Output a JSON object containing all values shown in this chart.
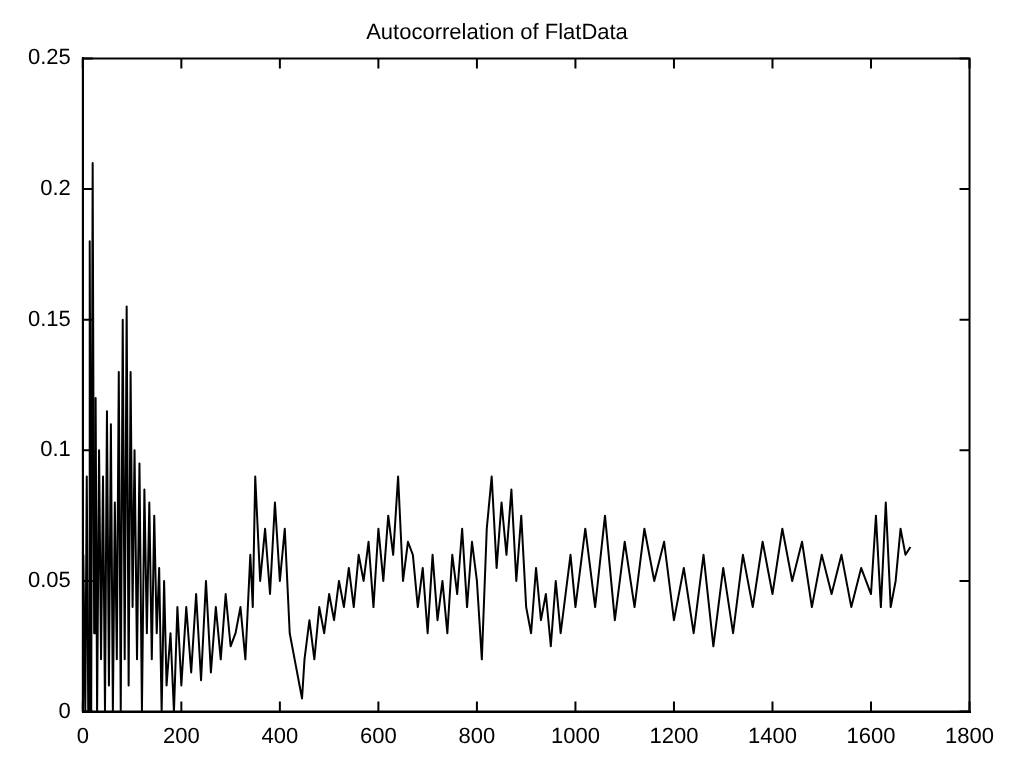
{
  "chart_data": {
    "type": "line",
    "title": "Autocorrelation of FlatData",
    "x": [
      1,
      5,
      8,
      11,
      14,
      17,
      20,
      23,
      26,
      29,
      33,
      37,
      41,
      45,
      49,
      53,
      57,
      61,
      65,
      69,
      73,
      77,
      81,
      85,
      89,
      93,
      97,
      101,
      105,
      110,
      115,
      120,
      125,
      130,
      135,
      140,
      145,
      150,
      155,
      160,
      165,
      170,
      178,
      185,
      192,
      200,
      210,
      220,
      230,
      240,
      250,
      260,
      270,
      280,
      290,
      300,
      310,
      320,
      330,
      340,
      345,
      350,
      360,
      370,
      380,
      390,
      400,
      410,
      420,
      430,
      440,
      445,
      450,
      460,
      470,
      480,
      490,
      500,
      510,
      520,
      530,
      540,
      550,
      560,
      570,
      580,
      590,
      600,
      610,
      620,
      630,
      640,
      650,
      660,
      670,
      680,
      690,
      700,
      710,
      720,
      730,
      740,
      750,
      760,
      770,
      780,
      790,
      800,
      810,
      820,
      830,
      840,
      850,
      860,
      870,
      880,
      890,
      900,
      910,
      920,
      930,
      940,
      950,
      960,
      970,
      980,
      990,
      1000,
      1020,
      1040,
      1060,
      1080,
      1100,
      1120,
      1140,
      1160,
      1180,
      1200,
      1220,
      1240,
      1260,
      1280,
      1300,
      1320,
      1340,
      1360,
      1380,
      1400,
      1420,
      1440,
      1460,
      1480,
      1500,
      1520,
      1540,
      1560,
      1580,
      1600,
      1610,
      1620,
      1630,
      1640,
      1650,
      1660,
      1670,
      1680
    ],
    "series": [
      {
        "color": "#000000",
        "values": [
          0.06,
          0.0,
          0.09,
          0.0,
          0.18,
          0.0,
          0.21,
          0.03,
          0.12,
          0.0,
          0.1,
          0.02,
          0.09,
          0.0,
          0.115,
          0.01,
          0.11,
          0.0,
          0.08,
          0.02,
          0.13,
          0.0,
          0.15,
          0.02,
          0.155,
          0.01,
          0.13,
          0.04,
          0.1,
          0.02,
          0.095,
          0.0,
          0.085,
          0.03,
          0.08,
          0.02,
          0.075,
          0.03,
          0.055,
          0.0,
          0.05,
          0.01,
          0.03,
          0.0,
          0.04,
          0.01,
          0.04,
          0.015,
          0.045,
          0.012,
          0.05,
          0.015,
          0.04,
          0.02,
          0.045,
          0.025,
          0.03,
          0.04,
          0.02,
          0.06,
          0.04,
          0.09,
          0.05,
          0.07,
          0.045,
          0.08,
          0.05,
          0.07,
          0.03,
          0.02,
          0.01,
          0.005,
          0.02,
          0.035,
          0.02,
          0.04,
          0.03,
          0.045,
          0.035,
          0.05,
          0.04,
          0.055,
          0.04,
          0.06,
          0.05,
          0.065,
          0.04,
          0.07,
          0.05,
          0.075,
          0.06,
          0.09,
          0.05,
          0.065,
          0.06,
          0.04,
          0.055,
          0.03,
          0.06,
          0.035,
          0.05,
          0.03,
          0.06,
          0.045,
          0.07,
          0.04,
          0.065,
          0.05,
          0.02,
          0.07,
          0.09,
          0.055,
          0.08,
          0.06,
          0.085,
          0.05,
          0.075,
          0.04,
          0.03,
          0.055,
          0.035,
          0.045,
          0.025,
          0.05,
          0.03,
          0.045,
          0.06,
          0.04,
          0.07,
          0.04,
          0.075,
          0.035,
          0.065,
          0.04,
          0.07,
          0.05,
          0.065,
          0.035,
          0.055,
          0.03,
          0.06,
          0.025,
          0.055,
          0.03,
          0.06,
          0.04,
          0.065,
          0.045,
          0.07,
          0.05,
          0.065,
          0.04,
          0.06,
          0.045,
          0.06,
          0.04,
          0.055,
          0.045,
          0.075,
          0.04,
          0.08,
          0.04,
          0.05,
          0.07,
          0.06,
          0.063
        ]
      }
    ],
    "xlim": [
      0,
      1800
    ],
    "xticks": [
      0,
      200,
      400,
      600,
      800,
      1000,
      1200,
      1400,
      1600,
      1800
    ],
    "ylim": [
      0,
      0.25
    ],
    "yticks": [
      0,
      0.05,
      0.1,
      0.15,
      0.2,
      0.25
    ],
    "grid": false,
    "legend": false
  }
}
